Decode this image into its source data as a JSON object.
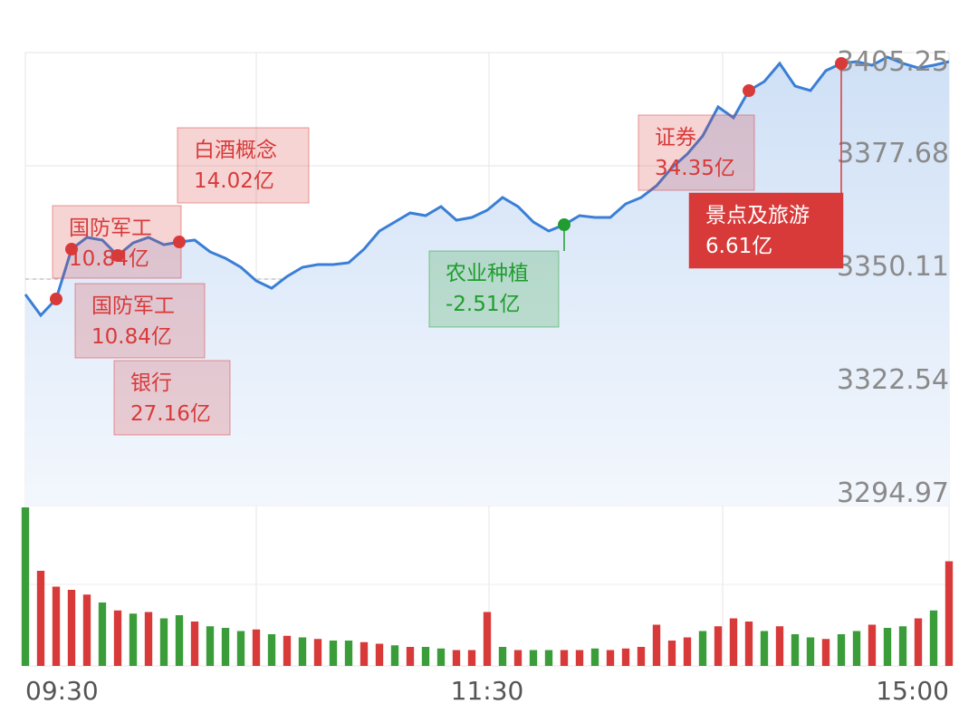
{
  "chart_data": {
    "type": "line",
    "categories": [
      "09:30",
      null,
      null,
      null,
      null,
      null,
      null,
      null,
      null,
      null,
      null,
      null,
      null,
      null,
      null,
      null,
      null,
      null,
      null,
      null,
      null,
      null,
      null,
      null,
      null,
      null,
      null,
      null,
      null,
      null,
      "11:30",
      null,
      null,
      null,
      null,
      null,
      null,
      null,
      null,
      null,
      null,
      null,
      null,
      null,
      null,
      null,
      null,
      null,
      null,
      null,
      null,
      null,
      null,
      null,
      null,
      null,
      null,
      null,
      null,
      null,
      "15:00"
    ],
    "series": [
      {
        "color": "#3a7fd5",
        "values": [
          3346.35,
          3341.28,
          3345.25,
          3357.38,
          3360.25,
          3359.59,
          3355.84,
          3358.92,
          3360.25,
          3358.48,
          3359.14,
          3359.59,
          3356.72,
          3355.17,
          3352.97,
          3349.66,
          3347.89,
          3350.76,
          3352.97,
          3353.63,
          3353.63,
          3354.07,
          3357.38,
          3361.79,
          3364.0,
          3366.2,
          3365.54,
          3367.75,
          3364.44,
          3365.1,
          3366.87,
          3369.95,
          3367.75,
          3364.0,
          3361.79,
          3363.34,
          3365.54,
          3365.1,
          3365.1,
          3368.41,
          3369.95,
          3372.82,
          3377.23,
          3380.54,
          3384.95,
          3392.01,
          3389.37,
          3395.98,
          3398.19,
          3402.6,
          3397.09,
          3395.98,
          3400.84,
          3402.6,
          3403.04,
          3402.16,
          3404.15,
          3402.6,
          3401.5,
          3402.16,
          3403.04
        ]
      }
    ],
    "ylim": [
      3294.97,
      3405.25
    ],
    "yticks": [
      3405.25,
      3377.68,
      3350.11,
      3322.54,
      3294.97
    ],
    "ref_line": 3350.11,
    "grid": true,
    "volume": {
      "ylim": [
        0,
        100
      ],
      "values": [
        100,
        60,
        50,
        48,
        45,
        40,
        35,
        33,
        34,
        30,
        32,
        28,
        25,
        24,
        22,
        23,
        20,
        19,
        18,
        17,
        16,
        16,
        15,
        14,
        13,
        12,
        12,
        11,
        10,
        10,
        34,
        12,
        10,
        10,
        10,
        10,
        10,
        11,
        10,
        11,
        12,
        26,
        16,
        18,
        22,
        25,
        30,
        28,
        22,
        25,
        20,
        18,
        17,
        20,
        22,
        26,
        24,
        25,
        30,
        35,
        66
      ],
      "colors": [
        "#3a9d3a",
        "#d83a3a",
        "#d83a3a",
        "#d83a3a",
        "#d83a3a",
        "#3a9d3a",
        "#d83a3a",
        "#3a9d3a",
        "#d83a3a",
        "#3a9d3a",
        "#3a9d3a",
        "#d83a3a",
        "#3a9d3a",
        "#3a9d3a",
        "#3a9d3a",
        "#d83a3a",
        "#3a9d3a",
        "#d83a3a",
        "#3a9d3a",
        "#d83a3a",
        "#3a9d3a",
        "#3a9d3a",
        "#d83a3a",
        "#d83a3a",
        "#3a9d3a",
        "#d83a3a",
        "#3a9d3a",
        "#3a9d3a",
        "#d83a3a",
        "#d83a3a",
        "#d83a3a",
        "#3a9d3a",
        "#d83a3a",
        "#3a9d3a",
        "#3a9d3a",
        "#d83a3a",
        "#d83a3a",
        "#3a9d3a",
        "#d83a3a",
        "#d83a3a",
        "#d83a3a",
        "#d83a3a",
        "#d83a3a",
        "#d83a3a",
        "#3a9d3a",
        "#d83a3a",
        "#d83a3a",
        "#d83a3a",
        "#3a9d3a",
        "#d83a3a",
        "#3a9d3a",
        "#3a9d3a",
        "#d83a3a",
        "#3a9d3a",
        "#3a9d3a",
        "#d83a3a",
        "#3a9d3a",
        "#3a9d3a",
        "#d83a3a",
        "#3a9d3a",
        "#d83a3a"
      ]
    },
    "events": [
      {
        "name": "国防军工",
        "amount": {
          "value": 10.84,
          "label": "10.84亿"
        },
        "point": 3,
        "color": "#d83a3a"
      },
      {
        "name": "国防军工",
        "amount": {
          "value": 10.84,
          "label": "10.84亿"
        },
        "point": 2,
        "color": "#d83a3a"
      },
      {
        "name": "银行",
        "amount": {
          "value": 27.16,
          "label": "27.16亿"
        },
        "point": 6,
        "color": "#d83a3a"
      },
      {
        "name": "白酒概念",
        "amount": {
          "value": 14.02,
          "label": "14.02亿"
        },
        "point": 10,
        "color": "#d83a3a"
      },
      {
        "name": "农业种植",
        "amount": {
          "value": -2.51,
          "label": "-2.51亿"
        },
        "point": 35,
        "color": "#1f9d2e"
      },
      {
        "name": "证券",
        "amount": {
          "value": 34.35,
          "label": "34.35亿"
        },
        "point": 47,
        "color": "#d83a3a"
      },
      {
        "name": "景点及旅游",
        "amount": {
          "value": 6.61,
          "label": "6.61亿"
        },
        "point": 53,
        "color": "#d83a3a",
        "highlight": true
      }
    ]
  }
}
